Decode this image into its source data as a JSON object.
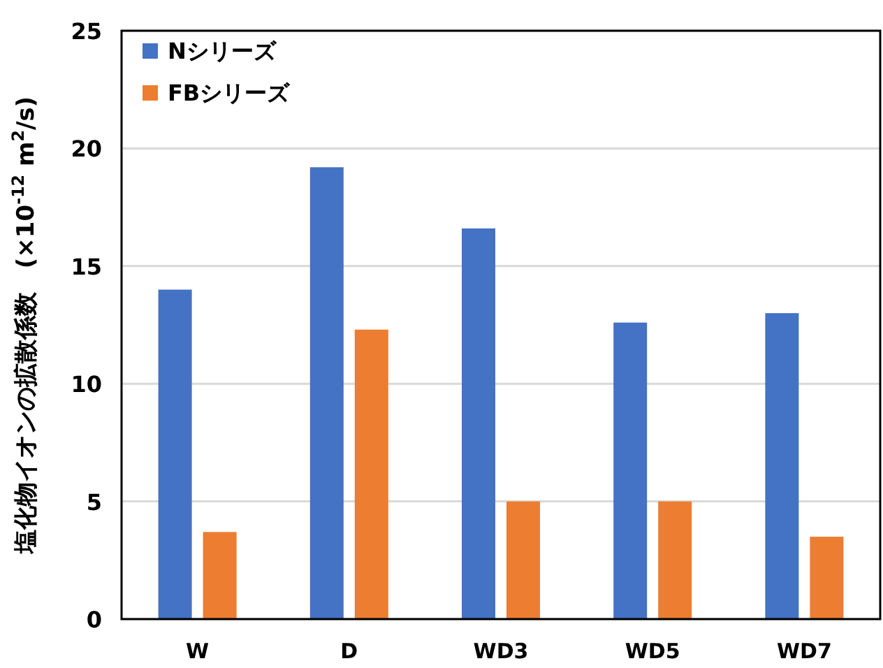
{
  "chart_data": {
    "type": "bar",
    "ylabel": "塩化物イオンの拡散係数　(×10$^{-12}$ m$^{2}$/s)",
    "categories": [
      "W",
      "D",
      "WD3",
      "WD5",
      "WD7"
    ],
    "series": [
      {
        "name": "Nシリーズ",
        "color": "#4472c4",
        "values": [
          14.0,
          19.2,
          16.6,
          12.6,
          13.0
        ]
      },
      {
        "name": "FBシリーズ",
        "color": "#ed7d31",
        "values": [
          3.7,
          12.3,
          5.0,
          5.0,
          3.5
        ]
      }
    ],
    "ylim": [
      0,
      25
    ],
    "yticks": [
      0,
      5,
      10,
      15,
      20,
      25
    ],
    "grid": "y",
    "legend": "top left"
  }
}
